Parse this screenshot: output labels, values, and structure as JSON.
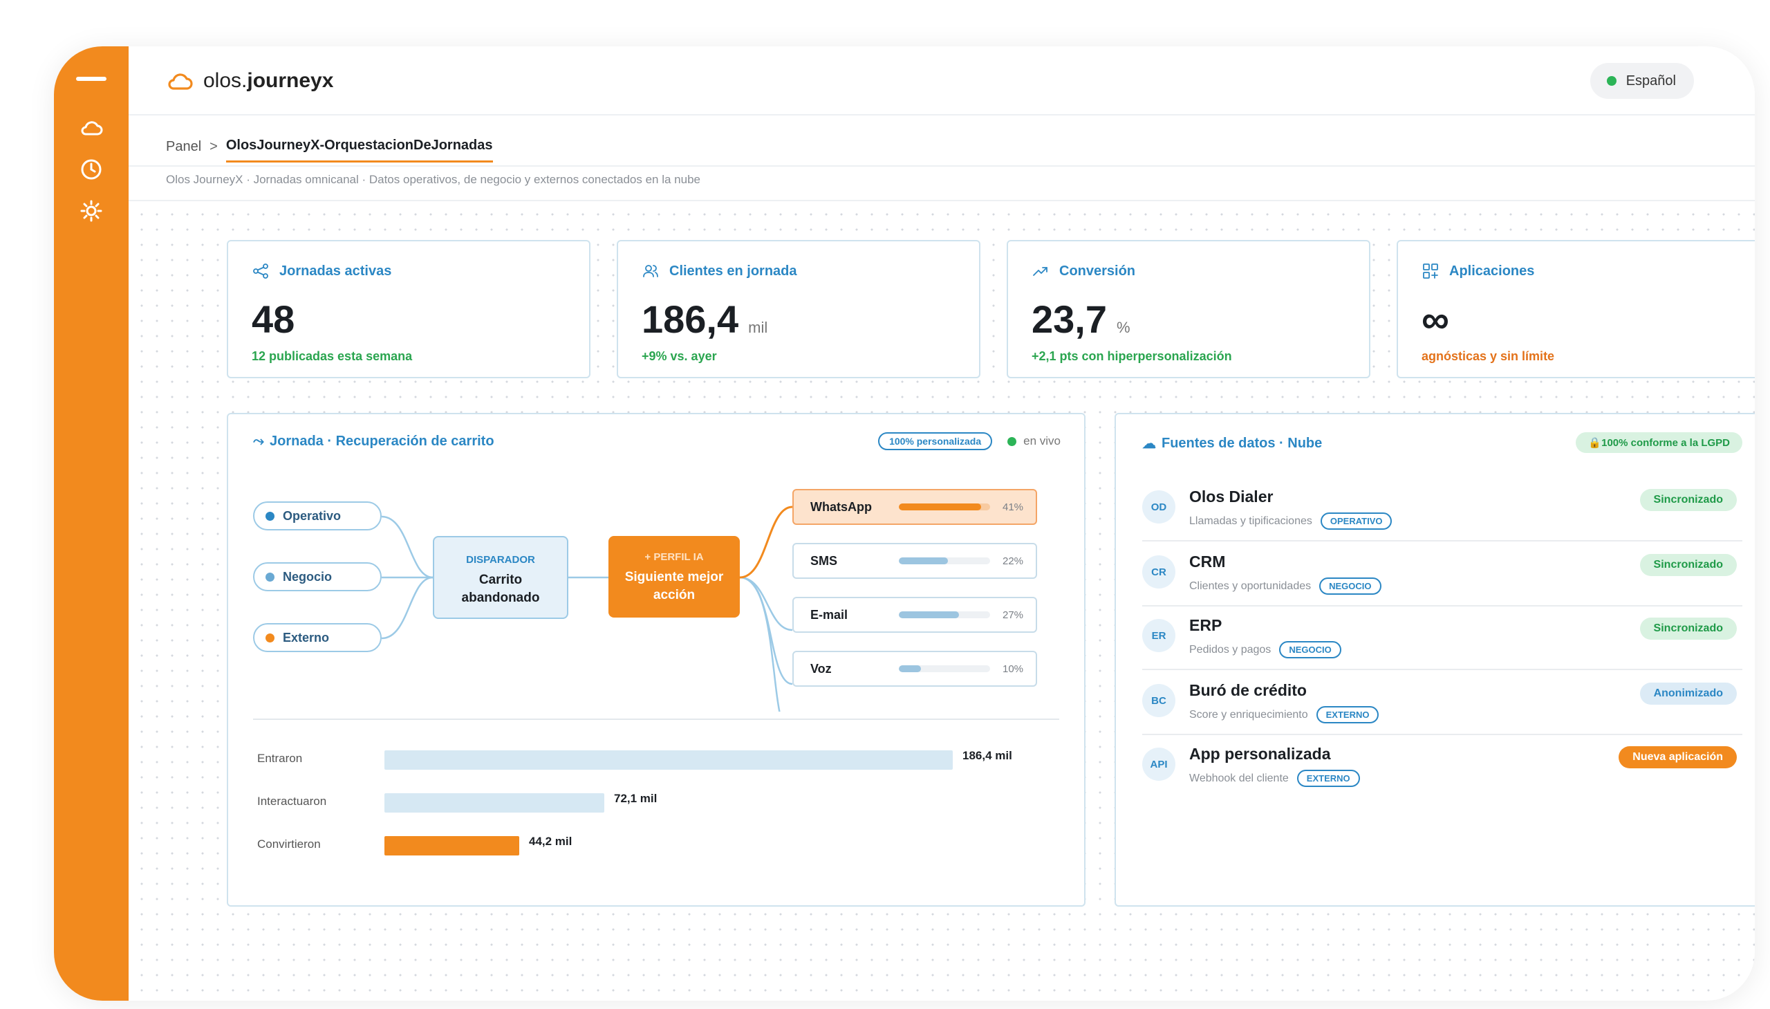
{
  "app": {
    "brand_prefix": "olos.",
    "brand_bold": "journeyx"
  },
  "language": {
    "label": "Español"
  },
  "rail": {
    "icons": [
      "menu-icon",
      "cloud-icon",
      "clock-icon",
      "sun-icon"
    ]
  },
  "breadcrumb": {
    "root": "Panel",
    "separator": ">",
    "current": "OlosJourneyX-OrquestacionDeJornadas"
  },
  "subtitle": "Olos JourneyX · Jornadas omnicanal · Datos operativos, de negocio y externos conectados en la nube",
  "kpis": [
    {
      "title": "Jornadas activas",
      "value": "48",
      "unit": "",
      "note": "12 publicadas esta semana",
      "note_color": "#2aa54f",
      "icon": "share-icon"
    },
    {
      "title": "Clientes en jornada",
      "value": "186,4",
      "unit": "mil",
      "note": "+9% vs. ayer",
      "note_color": "#2aa54f",
      "icon": "users-icon"
    },
    {
      "title": "Conversión",
      "value": "23,7",
      "unit": "%",
      "note": "+2,1 pts con hiperpersonalización",
      "note_color": "#2aa54f",
      "icon": "trend-up-icon"
    },
    {
      "title": "Aplicaciones",
      "value": "∞",
      "unit": "",
      "note": "agnósticas y sin límite",
      "note_color": "#e3721a",
      "icon": "apps-icon"
    }
  ],
  "journey": {
    "arrow": "⤳",
    "title": "Jornada · Recuperación de carrito",
    "badge": "100% personalizada",
    "live_label": "en vivo",
    "sources": [
      {
        "label": "Operativo",
        "color": "#2b87c4"
      },
      {
        "label": "Negocio",
        "color": "#6aa9d3"
      },
      {
        "label": "Externo",
        "color": "#f28a1e"
      }
    ],
    "trigger": {
      "kicker": "DISPARADOR",
      "line1": "Carrito",
      "line2": "abandonado"
    },
    "ai": {
      "kicker": "+ PERFIL IA",
      "line1": "Siguiente mejor",
      "line2": "acción"
    },
    "channels": [
      {
        "name": "WhatsApp",
        "pct_label": "41%",
        "share": 0.9,
        "highlight": true
      },
      {
        "name": "SMS",
        "pct_label": "22%",
        "share": 0.54,
        "highlight": false
      },
      {
        "name": "E-mail",
        "pct_label": "27%",
        "share": 0.66,
        "highlight": false
      },
      {
        "name": "Voz",
        "pct_label": "10%",
        "share": 0.24,
        "highlight": false
      }
    ],
    "funnel": [
      {
        "label": "Entraron",
        "value": 186.4,
        "value_label": "186,4 mil",
        "color": "blue"
      },
      {
        "label": "Interactuaron",
        "value": 72.1,
        "value_label": "72,1 mil",
        "color": "blue"
      },
      {
        "label": "Convirtieron",
        "value": 44.2,
        "value_label": "44,2 mil",
        "color": "orange"
      }
    ]
  },
  "data_sources": {
    "icon": "☁",
    "title": "Fuentes de datos · Nube",
    "compliance": "🔒100% conforme a la LGPD",
    "rows": [
      {
        "initials": "OD",
        "name": "Olos Dialer",
        "desc": "Llamadas y tipificaciones",
        "tag": "OPERATIVO",
        "status": "Sincronizado",
        "status_style": "green"
      },
      {
        "initials": "CR",
        "name": "CRM",
        "desc": "Clientes y oportunidades",
        "tag": "NEGOCIO",
        "status": "Sincronizado",
        "status_style": "green"
      },
      {
        "initials": "ER",
        "name": "ERP",
        "desc": "Pedidos y pagos",
        "tag": "NEGOCIO",
        "status": "Sincronizado",
        "status_style": "green"
      },
      {
        "initials": "BC",
        "name": "Buró de crédito",
        "desc": "Score y enriquecimiento",
        "tag": "EXTERNO",
        "status": "Anonimizado",
        "status_style": "blue"
      },
      {
        "initials": "API",
        "name": "App personalizada",
        "desc": "Webhook del cliente",
        "tag": "EXTERNO",
        "status": "Nueva aplicación",
        "status_style": "orange"
      }
    ]
  },
  "colors": {
    "accent": "#f28a1e",
    "primary": "#2b87c4",
    "success": "#2aa54f"
  }
}
